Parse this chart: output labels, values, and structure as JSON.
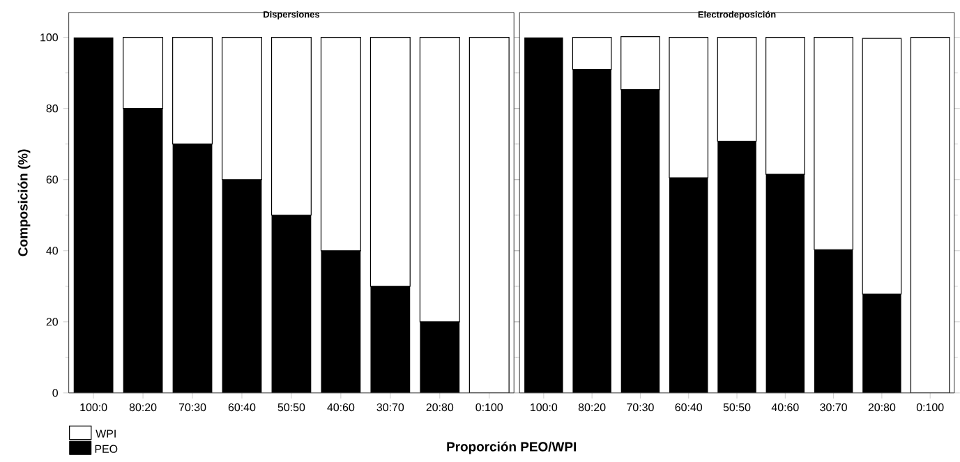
{
  "chart_data": [
    {
      "type": "bar",
      "title": "Dispersiones",
      "xlabel": "Proporción PEO/WPI",
      "ylabel": "Composición (%)",
      "stacked": true,
      "legend": "bottom left",
      "grid": false,
      "categories": [
        "100:0",
        "80:20",
        "70:30",
        "60:40",
        "50:50",
        "40:60",
        "30:70",
        "20:80",
        "0:100"
      ],
      "series": [
        {
          "name": "PEO",
          "color": "#000000",
          "values": [
            100,
            80,
            70,
            60,
            50,
            40,
            30,
            20,
            0
          ]
        },
        {
          "name": "WPI",
          "color": "#ffffff",
          "values": [
            0,
            20,
            30,
            40,
            50,
            60,
            70,
            80,
            100
          ]
        }
      ],
      "ylim": [
        0,
        107
      ],
      "yticks": [
        0,
        20,
        40,
        60,
        80,
        100
      ]
    },
    {
      "type": "bar",
      "title": "Electrodeposición",
      "stacked": true,
      "grid": false,
      "tick_labels": "x",
      "categories": [
        "100:0",
        "80:20",
        "70:30",
        "60:40",
        "50:50",
        "40:60",
        "30:70",
        "20:80",
        "0:100"
      ],
      "series": [
        {
          "color": "#000000",
          "values": [
            100,
            91,
            85.3,
            60.5,
            70.8,
            61.5,
            40.3,
            27.8,
            0
          ]
        },
        {
          "color": "#ffffff",
          "values": [
            0,
            9,
            14.9,
            39.5,
            29.2,
            38.5,
            59.7,
            71.9,
            100
          ]
        }
      ],
      "ylim": [
        0,
        107
      ],
      "yticks": [
        0,
        20,
        40,
        60,
        80,
        100
      ]
    }
  ]
}
